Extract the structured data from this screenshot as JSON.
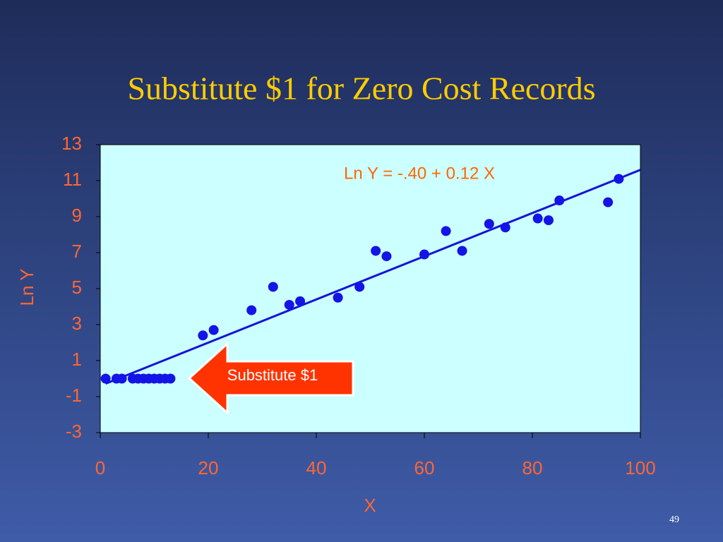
{
  "page_number": "49",
  "chart_data": {
    "type": "scatter",
    "title": "Substitute $1 for Zero Cost Records",
    "x_label": "X",
    "y_label": "Ln Y",
    "x": [
      1,
      3,
      4,
      6,
      7,
      8,
      9,
      10,
      11,
      12,
      13,
      19,
      21,
      28,
      32,
      35,
      37,
      44,
      48,
      51,
      53,
      60,
      64,
      67,
      72,
      75,
      81,
      83,
      85,
      94,
      96
    ],
    "values": [
      0,
      0,
      0,
      0,
      0,
      0,
      0,
      0,
      0,
      0,
      0,
      2.4,
      2.7,
      3.8,
      5.1,
      4.1,
      4.3,
      4.5,
      5.1,
      7.1,
      6.8,
      6.9,
      8.2,
      7.1,
      8.6,
      8.4,
      8.9,
      8.8,
      9.9,
      9.8,
      11.1
    ],
    "color": "#1414e6",
    "trendline": {
      "label": "Ln Y = -.40 + 0.12 X",
      "intercept": -0.4,
      "slope": 0.12,
      "color": "#1414d8"
    },
    "annotation": "Substitute $1",
    "xlim": [
      0,
      100
    ],
    "xticks": [
      0,
      20,
      40,
      60,
      80,
      100
    ],
    "ylim": [
      -3,
      13
    ],
    "yticks": [
      -3,
      -1,
      1,
      3,
      5,
      7,
      9,
      11,
      13
    ],
    "grid": false
  }
}
